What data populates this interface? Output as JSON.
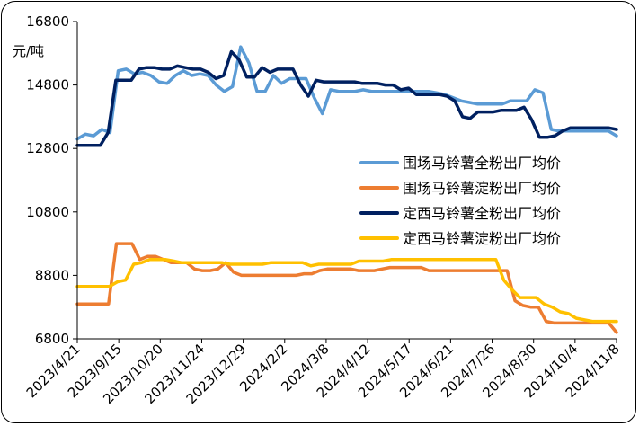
{
  "chart_data": {
    "type": "line",
    "title": "",
    "xlabel": "",
    "ylabel": "元/吨",
    "ylim": [
      6800,
      16800
    ],
    "yticks": [
      6800,
      8800,
      10800,
      12800,
      14800,
      16800
    ],
    "ytick_labels": [
      "6800",
      "8800",
      "10800",
      "12800",
      "14800",
      "16800"
    ],
    "xtick_labels": [
      "2023/4/21",
      "2023/9/15",
      "2023/10/20",
      "2023/11/24",
      "2023/12/29",
      "2024/2/2",
      "2024/3/8",
      "2024/4/12",
      "2024/5/17",
      "2024/6/21",
      "2024/7/26",
      "2024/8/30",
      "2024/10/4",
      "2024/11/8"
    ],
    "legend_position": "right-middle",
    "grid": false,
    "series": [
      {
        "name": "围场马铃薯全粉出厂均价",
        "color": "#5B9BD5",
        "values": [
          13100,
          13250,
          13200,
          13400,
          13300,
          15250,
          15300,
          15150,
          15200,
          15100,
          14900,
          14850,
          15100,
          15250,
          15100,
          15150,
          15100,
          14800,
          14600,
          14750,
          16000,
          15500,
          14600,
          14600,
          15100,
          14850,
          15000,
          15000,
          15000,
          14400,
          13900,
          14650,
          14600,
          14600,
          14600,
          14650,
          14600,
          14600,
          14600,
          14600,
          14600,
          14600,
          14600,
          14600,
          14550,
          14500,
          14400,
          14300,
          14250,
          14200,
          14200,
          14200,
          14200,
          14300,
          14300,
          14300,
          14650,
          14550,
          13400,
          13350,
          13350,
          13350,
          13350,
          13350,
          13350,
          13350,
          13200
        ]
      },
      {
        "name": "围场马铃薯淀粉出厂均价",
        "color": "#ED7D31",
        "values": [
          7900,
          7900,
          7900,
          7900,
          7900,
          9800,
          9800,
          9800,
          9300,
          9400,
          9400,
          9300,
          9200,
          9200,
          9200,
          9000,
          8950,
          8950,
          9000,
          9200,
          8900,
          8800,
          8800,
          8800,
          8800,
          8800,
          8800,
          8800,
          8800,
          8850,
          8850,
          8950,
          9000,
          9000,
          9000,
          9000,
          8950,
          8950,
          8950,
          9000,
          9050,
          9050,
          9050,
          9050,
          9050,
          8950,
          8950,
          8950,
          8950,
          8950,
          8950,
          8950,
          8950,
          8950,
          8950,
          8950,
          8000,
          7850,
          7800,
          7800,
          7350,
          7300,
          7300,
          7300,
          7300,
          7300,
          7300,
          7300,
          7300,
          7000
        ]
      },
      {
        "name": "定西马铃薯全粉出厂均价",
        "color": "#002060",
        "values": [
          12900,
          12900,
          12900,
          12900,
          13300,
          14950,
          14950,
          14950,
          15300,
          15350,
          15350,
          15300,
          15300,
          15400,
          15350,
          15300,
          15300,
          15200,
          15000,
          15100,
          15850,
          15600,
          15050,
          15050,
          15350,
          15200,
          15300,
          15300,
          15300,
          14800,
          14450,
          14950,
          14900,
          14900,
          14900,
          14900,
          14900,
          14850,
          14850,
          14850,
          14800,
          14800,
          14650,
          14700,
          14500,
          14500,
          14500,
          14500,
          14450,
          14300,
          13800,
          13750,
          13950,
          13950,
          13950,
          14000,
          14000,
          14000,
          14100,
          13700,
          13150,
          13150,
          13200,
          13350,
          13450,
          13450,
          13450,
          13450,
          13450,
          13450,
          13400
        ]
      },
      {
        "name": "定西马铃薯淀粉出厂均价",
        "color": "#FFC000",
        "values": [
          8450,
          8450,
          8450,
          8450,
          8450,
          8600,
          8650,
          9150,
          9200,
          9300,
          9300,
          9300,
          9250,
          9200,
          9200,
          9200,
          9200,
          9200,
          9200,
          9150,
          9150,
          9150,
          9150,
          9150,
          9200,
          9200,
          9200,
          9200,
          9200,
          9100,
          9150,
          9150,
          9150,
          9150,
          9150,
          9250,
          9250,
          9250,
          9250,
          9300,
          9300,
          9300,
          9300,
          9300,
          9300,
          9300,
          9300,
          9300,
          9300,
          9300,
          9300,
          9300,
          9300,
          8650,
          8350,
          8100,
          8100,
          8100,
          7900,
          7800,
          7650,
          7600,
          7450,
          7400,
          7350,
          7350,
          7350,
          7350
        ]
      }
    ]
  }
}
